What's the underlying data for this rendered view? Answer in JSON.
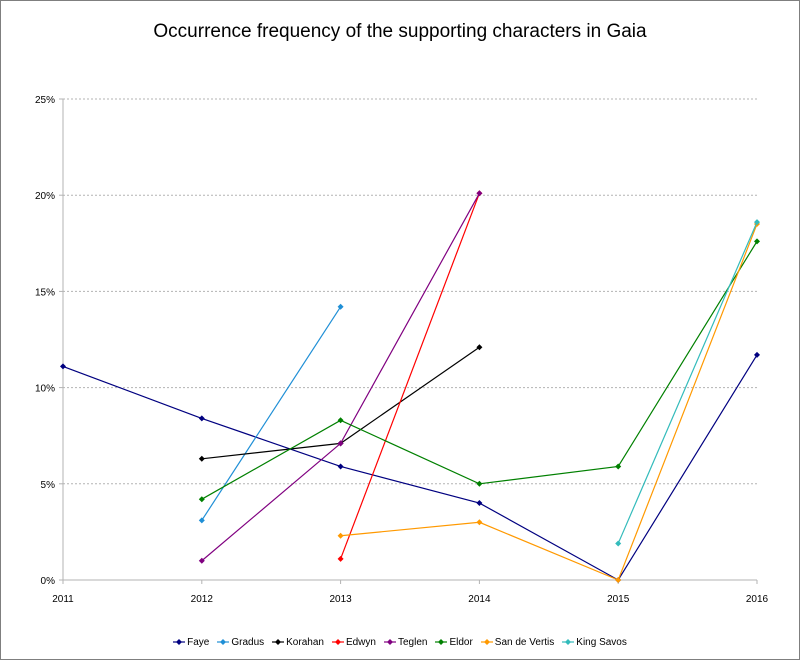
{
  "chart_data": {
    "type": "line",
    "title": "Occurrence frequency of the supporting characters in Gaia",
    "xlabel": "",
    "ylabel": "",
    "x": [
      2011,
      2012,
      2013,
      2014,
      2015,
      2016
    ],
    "x_tick_labels": [
      "2011",
      "2012",
      "2013",
      "2014",
      "2015",
      "2016"
    ],
    "ylim": [
      0,
      25
    ],
    "y_ticks": [
      0,
      5,
      10,
      15,
      20,
      25
    ],
    "y_tick_labels": [
      "0%",
      "5%",
      "10%",
      "15%",
      "20%",
      "25%"
    ],
    "grid": "horizontal",
    "legend_position": "bottom",
    "series": [
      {
        "name": "Faye",
        "color": "#000080",
        "values": [
          11.1,
          8.4,
          5.9,
          4.0,
          0.0,
          11.7
        ]
      },
      {
        "name": "Gradus",
        "color": "#1f8fd6",
        "values": [
          null,
          3.1,
          14.2,
          null,
          null,
          null
        ]
      },
      {
        "name": "Korahan",
        "color": "#000000",
        "values": [
          null,
          6.3,
          7.1,
          12.1,
          null,
          null
        ]
      },
      {
        "name": "Edwyn",
        "color": "#ff0000",
        "values": [
          null,
          null,
          1.1,
          20.1,
          null,
          null
        ]
      },
      {
        "name": "Teglen",
        "color": "#800080",
        "values": [
          null,
          1.0,
          7.1,
          20.1,
          null,
          null
        ]
      },
      {
        "name": "Eldor",
        "color": "#008000",
        "values": [
          null,
          4.2,
          8.3,
          5.0,
          5.9,
          17.6
        ]
      },
      {
        "name": "San de Vertis",
        "color": "#ff9900",
        "values": [
          null,
          null,
          2.3,
          3.0,
          0.0,
          18.5
        ]
      },
      {
        "name": "King Savos",
        "color": "#33bbbb",
        "values": [
          null,
          null,
          null,
          null,
          1.9,
          18.6
        ]
      }
    ]
  }
}
